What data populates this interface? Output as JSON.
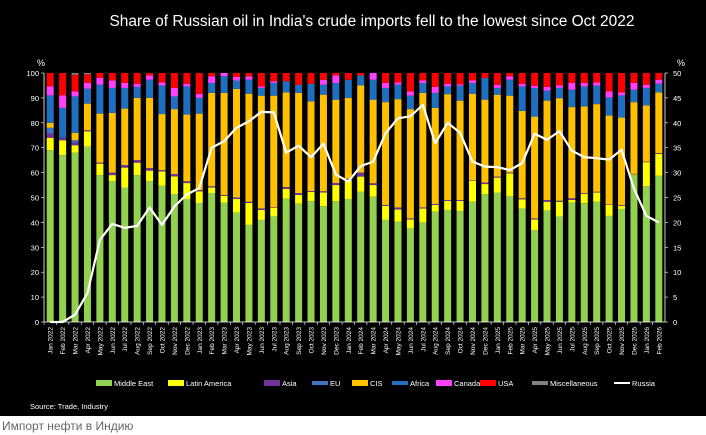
{
  "caption": "Импорт нефти в Индию",
  "chart_data": {
    "type": "bar",
    "stacked": true,
    "title": "Share of Russian oil in India's crude imports fell to the lowest since Oct 2022",
    "source": "Source: Trade, Industry",
    "left_axis_unit": "%",
    "right_axis_unit": "%",
    "ylim": [
      0,
      100
    ],
    "yticks": [
      0,
      10,
      20,
      30,
      40,
      50,
      60,
      70,
      80,
      90,
      100
    ],
    "y2lim": [
      0,
      50
    ],
    "y2ticks": [
      0,
      5,
      10,
      15,
      20,
      25,
      30,
      35,
      40,
      45,
      50
    ],
    "grid": false,
    "legend_position": "bottom",
    "categories": [
      "Jan 2022",
      "Feb 2022",
      "Mar 2022",
      "Apr 2022",
      "May 2022",
      "Jun 2022",
      "Jul 2022",
      "Aug 2022",
      "Sep 2022",
      "Oct 2022",
      "Nov 2022",
      "Dec 2022",
      "Jan 2023",
      "Feb 2023",
      "Mar 2023",
      "Apr 2023",
      "May 2023",
      "Jun 2023",
      "Jul 2023",
      "Aug 2023",
      "Sep 2023",
      "Oct 2023",
      "Nov 2023",
      "Dec 2023",
      "Jan 2024",
      "Feb 2024",
      "Mar 2024",
      "Apr 2024",
      "May 2024",
      "Jun 2024",
      "Jul 2024",
      "Aug 2024",
      "Sep 2024",
      "Oct 2024",
      "Nov 2024",
      "Dec 2024",
      "Jan 2025",
      "Feb 2025",
      "Mar 2025",
      "Apr 2025",
      "May 2025",
      "Jun 2025",
      "Jul 2025",
      "Aug 2025",
      "Sep 2025",
      "Oct 2025",
      "Nov 2025",
      "Dec 2025",
      "Jan 2026",
      "Feb 2026"
    ],
    "series": [
      {
        "name": "Middle East",
        "color": "#92D050",
        "values": [
          69,
          67,
          68,
          70.5,
          59,
          56.5,
          54,
          59,
          56.5,
          54.7,
          51.4,
          49.4,
          47.8,
          51.8,
          48,
          44,
          39,
          41,
          42.4,
          49.5,
          47.5,
          48.5,
          46.5,
          48.5,
          49.4,
          52.3,
          50.3,
          41,
          40.3,
          37.6,
          40,
          44.3,
          45,
          44.6,
          48.3,
          51.3,
          52,
          50.6,
          45.6,
          36.9,
          44.7,
          42.3,
          47.9,
          47.7,
          48.3,
          42.6,
          45.4,
          59,
          54.6,
          58.7
        ]
      },
      {
        "name": "Latin America",
        "color": "#FFFF00",
        "values": [
          5,
          6,
          3,
          6.1,
          4.6,
          2.5,
          8,
          5,
          4.3,
          5.8,
          7.1,
          6.4,
          4.7,
          2.2,
          2.7,
          5.4,
          8.8,
          4,
          3.4,
          4,
          3.5,
          3.7,
          5.5,
          6.5,
          7.6,
          6.1,
          4.7,
          5.6,
          4.9,
          3.6,
          5.6,
          2.7,
          3.6,
          4,
          8.5,
          4.1,
          6,
          9.1,
          3.7,
          4.3,
          3.6,
          6,
          1.1,
          3.7,
          3.7,
          4.4,
          1.3,
          0.3,
          9.6,
          8.8
        ]
      },
      {
        "name": "Asia",
        "color": "#7030A0",
        "values": [
          1.6,
          1,
          1,
          0.4,
          0.4,
          1,
          1,
          1,
          1,
          0.5,
          0.9,
          0.7,
          0.5,
          0.5,
          0.3,
          0.6,
          0.5,
          0.6,
          0.2,
          0.7,
          0.8,
          0.4,
          0.5,
          0.8,
          0.5,
          1.6,
          0.7,
          0.4,
          0.8,
          0.4,
          0.4,
          0.4,
          0.4,
          0.4,
          0.2,
          0.6,
          0.4,
          0.3,
          0.4,
          0.4,
          0.7,
          0.4,
          0.7,
          0.3,
          0.3,
          0.2,
          0.3,
          0.2,
          0.2,
          0.3
        ]
      },
      {
        "name": "EU",
        "color": "#4472C4",
        "values": [
          2.4,
          0,
          1,
          0,
          0,
          0,
          0,
          0,
          0,
          0,
          0,
          0,
          0,
          0,
          0,
          0,
          0,
          0,
          0,
          0,
          0,
          0,
          0,
          0,
          0,
          0,
          0,
          0,
          0,
          0,
          0,
          0,
          0,
          0,
          0,
          0,
          0,
          0,
          0,
          0,
          0,
          0,
          0,
          0,
          0,
          0,
          0,
          0,
          0,
          0
        ]
      },
      {
        "name": "CIS",
        "color": "#FFC000",
        "values": [
          2,
          0,
          3,
          10.7,
          19.7,
          24,
          22.7,
          25,
          28.2,
          22.5,
          26.1,
          26.8,
          30.7,
          37.5,
          41,
          43.6,
          43.4,
          45.3,
          44.9,
          38,
          40.2,
          36,
          38.8,
          33.5,
          32.5,
          35,
          33.6,
          41.3,
          43.5,
          43.9,
          46,
          38.6,
          42.5,
          39.9,
          34.7,
          33.3,
          32.9,
          30.9,
          35.1,
          40.9,
          39.9,
          41.2,
          36.6,
          34.9,
          35.2,
          35.7,
          35.1,
          28.8,
          22.6,
          24.4
        ]
      },
      {
        "name": "Africa",
        "color": "#1F6FC0",
        "values": [
          11,
          12,
          14.6,
          6,
          11.6,
          10,
          8.3,
          4.4,
          7.3,
          11.5,
          5.1,
          11.3,
          6.3,
          4,
          6.7,
          3.4,
          5.6,
          3.1,
          5.1,
          4.5,
          3.3,
          7.1,
          4,
          6.7,
          7.3,
          4,
          8,
          5.7,
          5.8,
          5.4,
          4,
          6,
          3.1,
          6,
          4.3,
          8.7,
          2.7,
          6.4,
          9.8,
          11.5,
          4,
          4.1,
          7,
          8,
          7.4,
          7.3,
          8.9,
          5,
          7,
          3.5
        ]
      },
      {
        "name": "Canada",
        "color": "#FF40FF",
        "values": [
          3.6,
          5,
          2,
          2.3,
          2.7,
          3,
          2,
          1.3,
          1.7,
          1.2,
          3.4,
          1.1,
          1.6,
          2.7,
          1.3,
          1.4,
          1.4,
          0.6,
          0.7,
          0,
          0,
          0,
          2,
          3,
          0,
          0,
          2.7,
          2,
          0.9,
          1.7,
          1,
          2.4,
          1.1,
          0.6,
          1,
          0,
          1.3,
          1.4,
          1.1,
          0.9,
          1.5,
          1,
          2.7,
          1.4,
          1.3,
          2.4,
          1.2,
          2.7,
          1.3,
          1.6
        ]
      },
      {
        "name": "USA",
        "color": "#FF0000",
        "values": [
          5.4,
          9,
          6.7,
          3.5,
          2,
          3,
          4,
          4.3,
          1,
          3.8,
          6,
          4.3,
          8.4,
          1.3,
          0,
          1.6,
          1.3,
          5.4,
          3.3,
          3.3,
          4.7,
          4.3,
          2.7,
          1,
          2.7,
          1,
          0,
          4,
          3.8,
          7.4,
          3,
          5.6,
          4.3,
          4.5,
          3,
          2,
          4.7,
          1.3,
          4.3,
          5.1,
          5.6,
          5,
          4,
          4,
          3.8,
          7.4,
          7.8,
          4,
          4.7,
          2.7
        ]
      },
      {
        "name": "Miscellaneous",
        "color": "#808080",
        "values": [
          0,
          0,
          0.7,
          0.5,
          0,
          0,
          0,
          0,
          0,
          0,
          0,
          0,
          0,
          0,
          0,
          0,
          0,
          0,
          0,
          0,
          0,
          0,
          0,
          0,
          0,
          0,
          0,
          0,
          0,
          0,
          0,
          0,
          0,
          0,
          0,
          0,
          0,
          0,
          0,
          0,
          0,
          0,
          0,
          0,
          0,
          0,
          0,
          0,
          0,
          0
        ]
      }
    ],
    "line_series": {
      "name": "Russia",
      "color": "#FFFFFF",
      "axis": "right",
      "values": [
        0,
        0,
        1.5,
        5.8,
        16.5,
        19.7,
        18.9,
        19.3,
        23,
        19.5,
        23.2,
        25.6,
        26.9,
        35,
        36.3,
        39,
        40.3,
        42.2,
        42.1,
        34,
        35.4,
        33.1,
        35.8,
        29.6,
        28.2,
        31.3,
        32.2,
        37.9,
        40.9,
        41.3,
        43.6,
        35.9,
        40,
        38,
        32.2,
        31.2,
        31.1,
        30.5,
        31.9,
        37.8,
        36.6,
        38.3,
        34.4,
        33.1,
        32.9,
        32.6,
        34.6,
        26.8,
        21.3,
        20
      ]
    }
  }
}
